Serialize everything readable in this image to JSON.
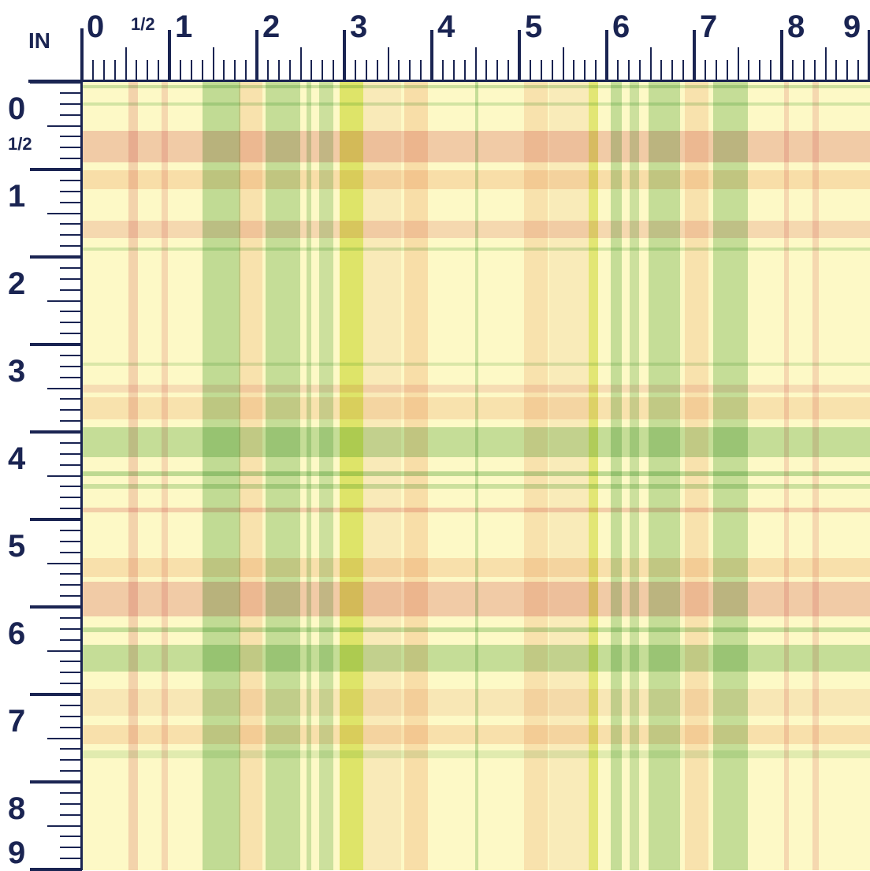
{
  "unit": "IN",
  "top_labels": [
    {
      "text": "0",
      "kind": "big"
    },
    {
      "text": "1/2",
      "kind": "small"
    },
    {
      "text": "1",
      "kind": "big"
    },
    {
      "text": "2",
      "kind": "big"
    },
    {
      "text": "3",
      "kind": "big"
    },
    {
      "text": "4",
      "kind": "big"
    },
    {
      "text": "5",
      "kind": "big"
    },
    {
      "text": "6",
      "kind": "big"
    },
    {
      "text": "7",
      "kind": "big"
    },
    {
      "text": "8",
      "kind": "big"
    },
    {
      "text": "9",
      "kind": "big"
    }
  ],
  "left_labels": [
    {
      "text": "0",
      "kind": "big"
    },
    {
      "text": "1/2",
      "kind": "small"
    },
    {
      "text": "1",
      "kind": "big"
    },
    {
      "text": "2",
      "kind": "big"
    },
    {
      "text": "3",
      "kind": "big"
    },
    {
      "text": "4",
      "kind": "big"
    },
    {
      "text": "5",
      "kind": "big"
    },
    {
      "text": "6",
      "kind": "big"
    },
    {
      "text": "7",
      "kind": "big"
    },
    {
      "text": "8",
      "kind": "big"
    },
    {
      "text": "9",
      "kind": "big"
    }
  ],
  "colors": {
    "ruler": "#1a2452",
    "ground": "#fdf9c6",
    "green": "#b9dcb4",
    "pink": "#f1c8cf",
    "peach": "#f6d2bf",
    "yellow_green": "#dde87a",
    "blush": "#f7e4de"
  }
}
